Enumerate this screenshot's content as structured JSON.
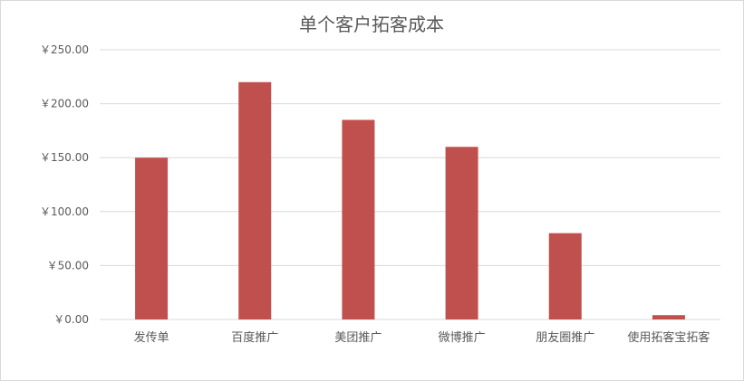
{
  "chart_data": {
    "type": "bar",
    "title": "单个客户拓客成本",
    "categories": [
      "发传单",
      "百度推广",
      "美团推广",
      "微博推广",
      "朋友圈推广",
      "使用拓客宝拓客"
    ],
    "values": [
      150,
      220,
      185,
      160,
      80,
      4
    ],
    "ylim": [
      0,
      250
    ],
    "yticks": [
      0,
      50,
      100,
      150,
      200,
      250
    ],
    "ytick_format": "￥{v}.00",
    "grid": true,
    "legend": "none",
    "xlabel": "",
    "ylabel": "",
    "colors": {
      "bar": "#c0504d",
      "grid": "#d9d9d9",
      "text": "#595959"
    }
  }
}
